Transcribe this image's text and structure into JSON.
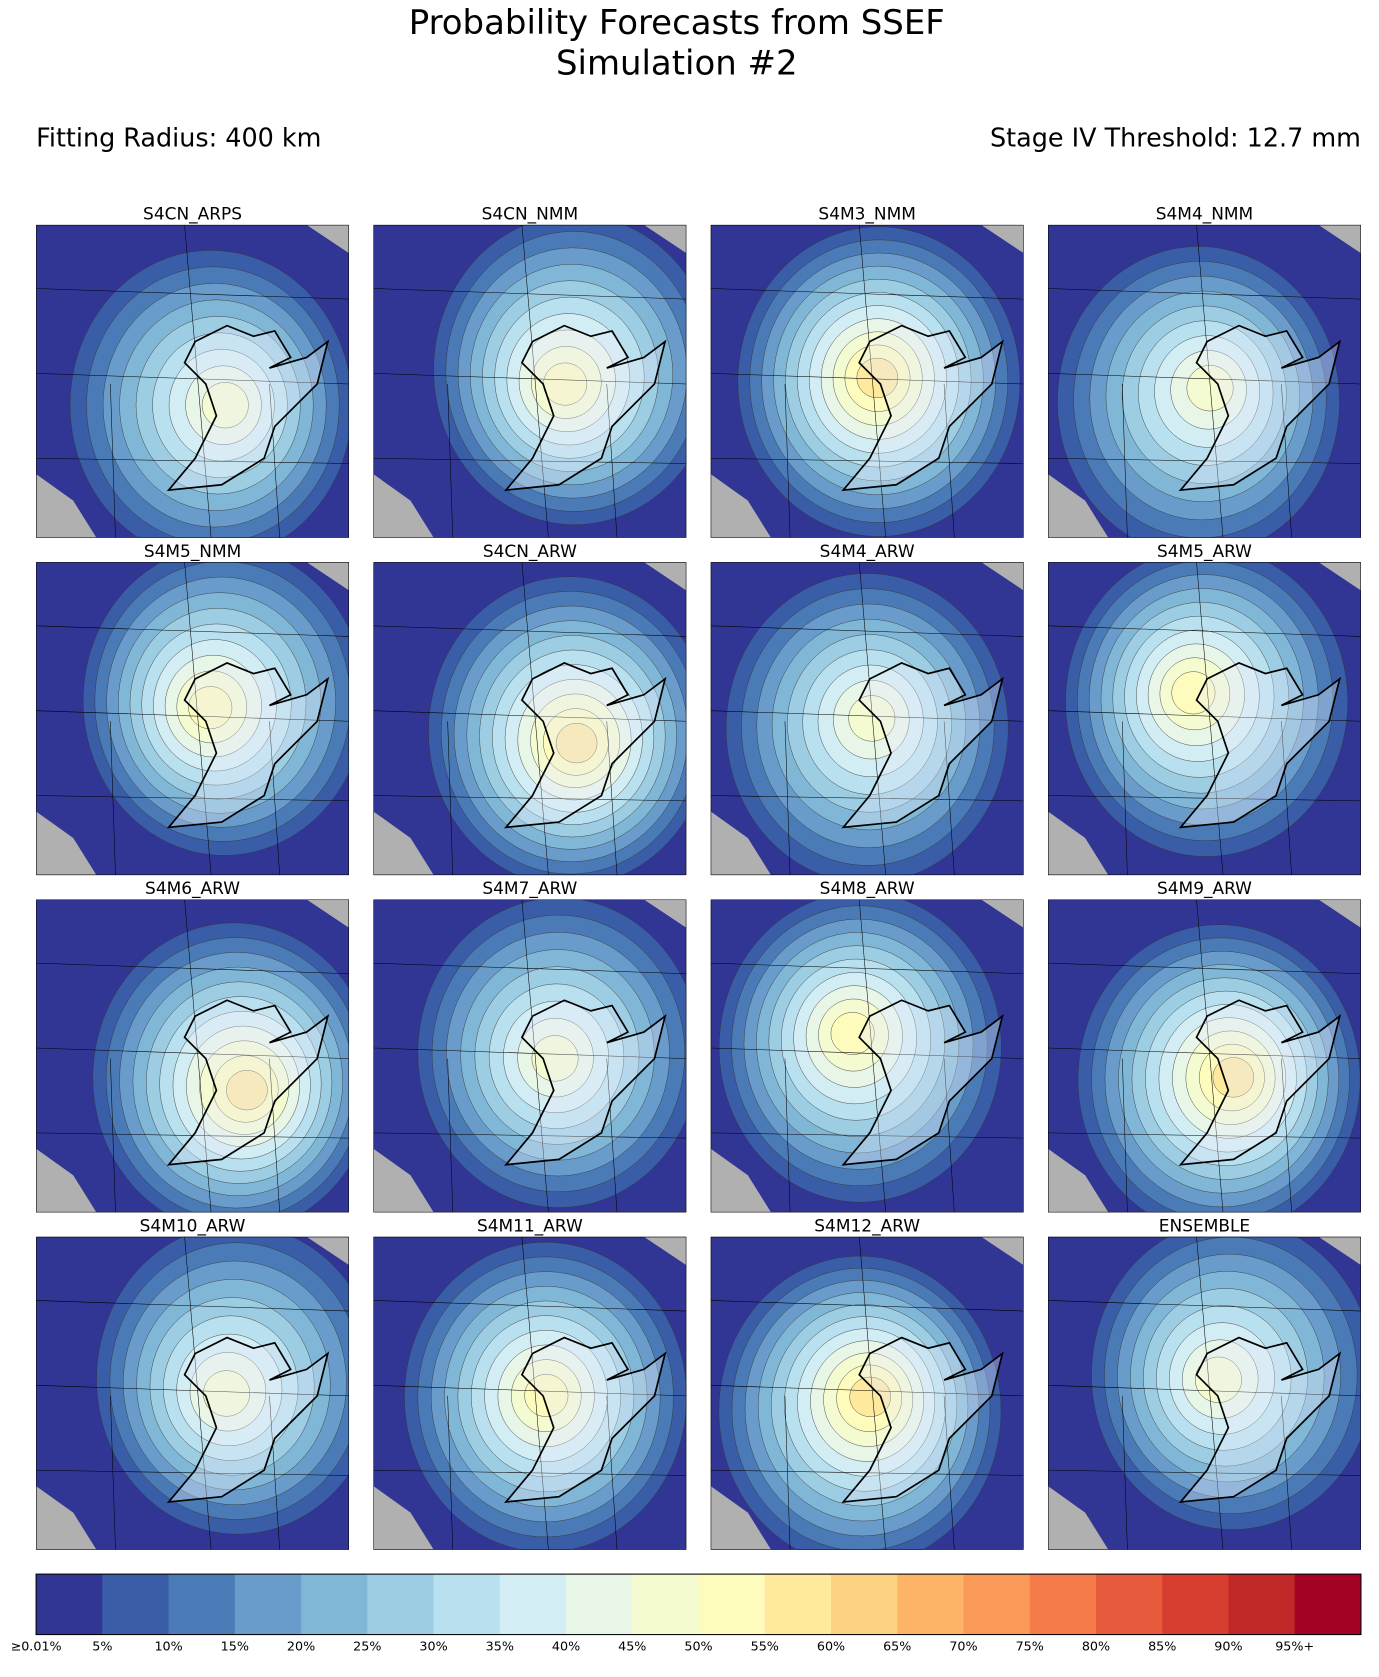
{
  "header": {
    "title": [
      "Probability Forecasts from SSEF",
      "Simulation #2"
    ],
    "left_label": "Fitting Radius: 400 km",
    "right_label": "Stage IV Threshold: 12.7 mm"
  },
  "panels": [
    {
      "title": "S4CN_ARPS"
    },
    {
      "title": "S4CN_NMM"
    },
    {
      "title": "S4M3_NMM"
    },
    {
      "title": "S4M4_NMM"
    },
    {
      "title": "S4M5_NMM"
    },
    {
      "title": "S4CN_ARW"
    },
    {
      "title": "S4M4_ARW"
    },
    {
      "title": "S4M5_ARW"
    },
    {
      "title": "S4M6_ARW"
    },
    {
      "title": "S4M7_ARW"
    },
    {
      "title": "S4M8_ARW"
    },
    {
      "title": "S4M9_ARW"
    },
    {
      "title": "S4M10_ARW"
    },
    {
      "title": "S4M11_ARW"
    },
    {
      "title": "S4M12_ARW"
    },
    {
      "title": "ENSEMBLE"
    }
  ],
  "colorbar": {
    "labels": [
      "≥0.01%",
      "5%",
      "10%",
      "15%",
      "20%",
      "25%",
      "30%",
      "35%",
      "40%",
      "45%",
      "50%",
      "55%",
      "60%",
      "65%",
      "70%",
      "75%",
      "80%",
      "85%",
      "90%",
      "95%+"
    ],
    "colors": [
      "#313695",
      "#3a5da8",
      "#4a7bb7",
      "#6a9ccb",
      "#80b6d6",
      "#9dcde3",
      "#b8e0ee",
      "#d3edf4",
      "#e8f6e8",
      "#f5fbd0",
      "#fefcbc",
      "#fee99d",
      "#fed283",
      "#fdb466",
      "#fb9a58",
      "#f57b4b",
      "#e75a3b",
      "#d73e2f",
      "#c02828",
      "#a50026"
    ]
  }
}
